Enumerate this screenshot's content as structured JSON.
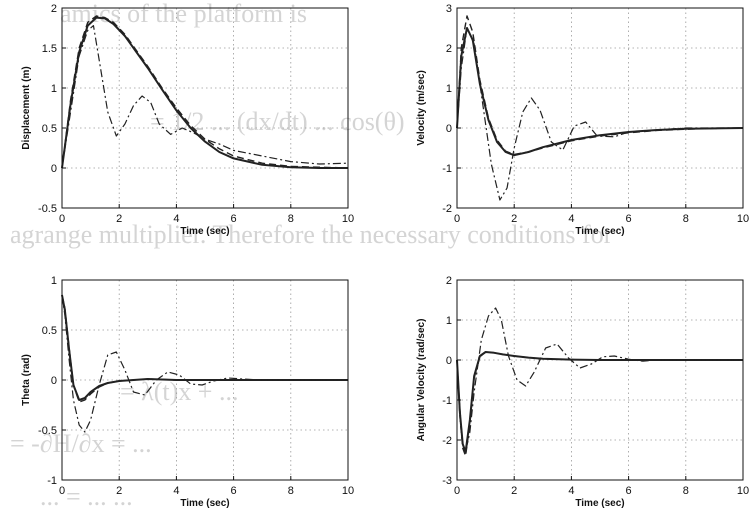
{
  "background_text": [
    "amics of the platform is",
    "= 1/2 ... (dx/dt) ... cos(θ)",
    "agrange multiplier. Therefore the necessary conditions for",
    "= λ(t)x + ...",
    "= -∂H/∂x = ...",
    "... = ... ..."
  ],
  "colors": {
    "axis": "#111111",
    "grid": "#9a9a9a",
    "line": "#222222"
  },
  "chart_data": [
    {
      "type": "line",
      "xlabel": "Time (sec)",
      "ylabel": "Displacement (m)",
      "xlim": [
        0,
        10
      ],
      "ylim": [
        -0.5,
        2
      ],
      "xticks": [
        0,
        2,
        4,
        6,
        8,
        10
      ],
      "yticks": [
        -0.5,
        0,
        0.5,
        1,
        1.5,
        2
      ],
      "ytick_labels": [
        "-0.5",
        "0",
        "0.5",
        "1",
        "1.5",
        "2"
      ],
      "grid": true,
      "series": [
        {
          "style": "solid",
          "x": [
            0,
            0.3,
            0.6,
            0.9,
            1.2,
            1.5,
            1.8,
            2.2,
            2.6,
            3,
            3.5,
            4,
            4.5,
            5,
            5.5,
            6,
            7,
            8,
            9,
            10
          ],
          "y": [
            0,
            0.8,
            1.45,
            1.78,
            1.88,
            1.87,
            1.8,
            1.65,
            1.45,
            1.25,
            0.98,
            0.72,
            0.5,
            0.33,
            0.2,
            0.12,
            0.04,
            0.01,
            0,
            0
          ]
        },
        {
          "style": "dashed",
          "x": [
            0,
            0.3,
            0.6,
            0.9,
            1.2,
            1.5,
            1.8,
            2.2,
            2.6,
            3,
            3.5,
            4,
            4.5,
            5,
            5.5,
            6,
            7,
            8,
            9,
            10
          ],
          "y": [
            0,
            0.85,
            1.5,
            1.82,
            1.9,
            1.88,
            1.82,
            1.67,
            1.47,
            1.27,
            1,
            0.75,
            0.53,
            0.36,
            0.24,
            0.15,
            0.06,
            0.02,
            0.01,
            0
          ]
        },
        {
          "style": "dashdot",
          "x": [
            0,
            0.3,
            0.6,
            0.9,
            1.1,
            1.3,
            1.6,
            1.9,
            2.2,
            2.5,
            2.8,
            3.1,
            3.4,
            3.8,
            4.2,
            4.6,
            5,
            5.5,
            6,
            7,
            8,
            9,
            10
          ],
          "y": [
            0,
            0.7,
            1.4,
            1.72,
            1.78,
            1.35,
            0.7,
            0.4,
            0.55,
            0.78,
            0.9,
            0.82,
            0.55,
            0.42,
            0.5,
            0.44,
            0.36,
            0.3,
            0.22,
            0.15,
            0.08,
            0.05,
            0.06
          ]
        }
      ]
    },
    {
      "type": "line",
      "xlabel": "Time (sec)",
      "ylabel": "Velocity (m/sec)",
      "xlim": [
        0,
        10
      ],
      "ylim": [
        -2,
        3
      ],
      "xticks": [
        0,
        2,
        4,
        6,
        8,
        10
      ],
      "yticks": [
        -2,
        -1,
        0,
        1,
        2,
        3
      ],
      "ytick_labels": [
        "-2",
        "-1",
        "0",
        "1",
        "2",
        "3"
      ],
      "grid": true,
      "series": [
        {
          "style": "solid",
          "x": [
            0,
            0.15,
            0.35,
            0.55,
            0.8,
            1.1,
            1.4,
            1.7,
            2,
            2.5,
            3,
            4,
            5,
            6,
            7,
            8,
            9,
            10
          ],
          "y": [
            0,
            1.8,
            2.5,
            2.2,
            1.1,
            0.2,
            -0.35,
            -0.6,
            -0.68,
            -0.6,
            -0.48,
            -0.3,
            -0.18,
            -0.1,
            -0.05,
            -0.02,
            -0.01,
            0
          ]
        },
        {
          "style": "dashed",
          "x": [
            0,
            0.15,
            0.35,
            0.55,
            0.8,
            1.1,
            1.4,
            1.7,
            2,
            2.5,
            3,
            4,
            5,
            6,
            7,
            8,
            9,
            10
          ],
          "y": [
            0,
            2,
            2.8,
            2.4,
            1.2,
            0.25,
            -0.3,
            -0.58,
            -0.66,
            -0.6,
            -0.5,
            -0.32,
            -0.2,
            -0.12,
            -0.06,
            -0.03,
            -0.01,
            0
          ]
        },
        {
          "style": "dashdot",
          "x": [
            0,
            0.15,
            0.35,
            0.6,
            0.9,
            1.2,
            1.5,
            1.75,
            2,
            2.3,
            2.6,
            2.9,
            3.3,
            3.7,
            4.1,
            4.5,
            4.9,
            5.5,
            6,
            7,
            8,
            9,
            10
          ],
          "y": [
            0,
            1.5,
            2.5,
            2.1,
            0.6,
            -0.9,
            -1.8,
            -1.5,
            -0.5,
            0.4,
            0.75,
            0.45,
            -0.35,
            -0.55,
            0.05,
            0.15,
            -0.2,
            -0.22,
            -0.1,
            -0.05,
            0,
            0,
            0
          ]
        }
      ]
    },
    {
      "type": "line",
      "xlabel": "Time (sec)",
      "ylabel": "Theta (rad)",
      "xlim": [
        0,
        10
      ],
      "ylim": [
        -1,
        1
      ],
      "xticks": [
        0,
        2,
        4,
        6,
        8,
        10
      ],
      "yticks": [
        -1,
        -0.5,
        0,
        0.5,
        1
      ],
      "ytick_labels": [
        "-1",
        "-0.5",
        "0",
        "0.5",
        "1"
      ],
      "grid": true,
      "series": [
        {
          "style": "solid",
          "x": [
            0,
            0.1,
            0.25,
            0.4,
            0.6,
            0.8,
            1,
            1.3,
            1.6,
            2,
            2.5,
            3,
            4,
            5,
            6,
            7,
            8,
            9,
            10
          ],
          "y": [
            0.85,
            0.7,
            0.3,
            -0.05,
            -0.2,
            -0.18,
            -0.12,
            -0.06,
            -0.03,
            -0.01,
            0,
            0.01,
            0,
            0,
            0,
            0,
            0,
            0,
            0
          ]
        },
        {
          "style": "dashed",
          "x": [
            0,
            0.1,
            0.25,
            0.4,
            0.6,
            0.8,
            1,
            1.3,
            1.6,
            2,
            2.5,
            3,
            4,
            5,
            6,
            7,
            8,
            9,
            10
          ],
          "y": [
            0.85,
            0.72,
            0.32,
            -0.05,
            -0.22,
            -0.2,
            -0.14,
            -0.07,
            -0.03,
            -0.01,
            0,
            0.01,
            0,
            0,
            0,
            0,
            0,
            0,
            0
          ]
        },
        {
          "style": "dashdot",
          "x": [
            0,
            0.1,
            0.25,
            0.4,
            0.6,
            0.8,
            1,
            1.3,
            1.6,
            1.9,
            2.2,
            2.5,
            2.9,
            3.3,
            3.7,
            4.1,
            4.5,
            4.9,
            5.3,
            5.8,
            6.3,
            7,
            8,
            9,
            10
          ],
          "y": [
            0.85,
            0.65,
            0.2,
            -0.2,
            -0.45,
            -0.52,
            -0.4,
            -0.05,
            0.25,
            0.28,
            0.1,
            -0.12,
            -0.15,
            0.0,
            0.08,
            0.05,
            -0.04,
            -0.05,
            -0.01,
            0.02,
            0.01,
            0,
            0,
            0,
            0
          ]
        }
      ]
    },
    {
      "type": "line",
      "xlabel": "Time (sec)",
      "ylabel": "Angular Velocity (rad/sec)",
      "xlim": [
        0,
        10
      ],
      "ylim": [
        -3,
        2
      ],
      "xticks": [
        0,
        2,
        4,
        6,
        8,
        10
      ],
      "yticks": [
        -3,
        -2,
        -1,
        0,
        1,
        2
      ],
      "ytick_labels": [
        "-3",
        "-2",
        "-1",
        "0",
        "1",
        "2"
      ],
      "grid": true,
      "series": [
        {
          "style": "solid",
          "x": [
            0,
            0.1,
            0.2,
            0.3,
            0.45,
            0.6,
            0.8,
            1,
            1.3,
            1.6,
            2,
            2.5,
            3,
            4,
            5,
            6,
            7,
            8,
            9,
            10
          ],
          "y": [
            0,
            -1.3,
            -2.1,
            -2.3,
            -1.5,
            -0.4,
            0.1,
            0.2,
            0.18,
            0.14,
            0.1,
            0.06,
            0.03,
            0.01,
            0,
            0,
            0,
            0,
            0,
            0
          ]
        },
        {
          "style": "dashed",
          "x": [
            0,
            0.1,
            0.2,
            0.3,
            0.45,
            0.6,
            0.8,
            1,
            1.3,
            1.6,
            2,
            2.5,
            3,
            4,
            5,
            6,
            7,
            8,
            9,
            10
          ],
          "y": [
            0,
            -1.4,
            -2.2,
            -2.4,
            -1.6,
            -0.45,
            0.08,
            0.2,
            0.18,
            0.14,
            0.1,
            0.06,
            0.03,
            0.01,
            0,
            0,
            0,
            0,
            0,
            0
          ]
        },
        {
          "style": "dashdot",
          "x": [
            0,
            0.1,
            0.2,
            0.3,
            0.45,
            0.6,
            0.85,
            1.1,
            1.35,
            1.55,
            1.8,
            2.1,
            2.4,
            2.7,
            3.1,
            3.5,
            3.9,
            4.3,
            4.7,
            5.1,
            5.5,
            6,
            6.5,
            7,
            8,
            9,
            10
          ],
          "y": [
            0,
            -1.2,
            -2.1,
            -2.3,
            -1.8,
            -0.8,
            0.5,
            1.1,
            1.3,
            1,
            0.1,
            -0.5,
            -0.65,
            -0.3,
            0.3,
            0.4,
            0.05,
            -0.2,
            -0.1,
            0.08,
            0.1,
            0.02,
            -0.03,
            0,
            0,
            0,
            0
          ]
        }
      ]
    }
  ]
}
